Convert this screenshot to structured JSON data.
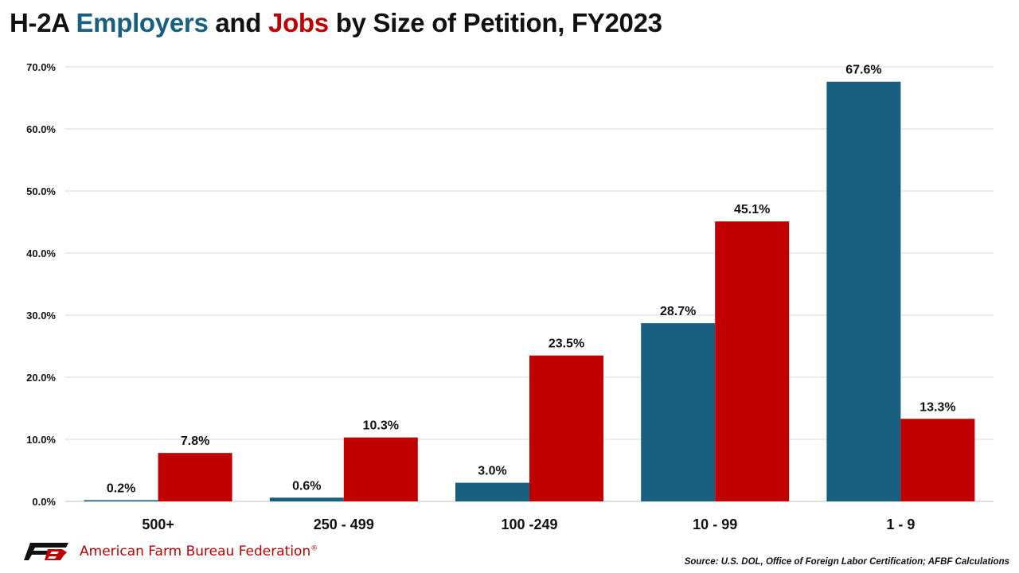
{
  "header": {
    "title_prefix": "H-2A ",
    "title_employers": "Employers",
    "title_and": " and ",
    "title_jobs": "Jobs",
    "title_suffix": " by Size of Petition, FY2023"
  },
  "colors": {
    "employers": "#185f80",
    "jobs": "#c00000",
    "grid": "#d9d9d9"
  },
  "chart_data": {
    "type": "bar",
    "title": "H-2A Employers and Jobs by Size of Petition, FY2023",
    "categories": [
      "500+",
      "250 - 499",
      "100 -249",
      "10 - 99",
      "1 - 9"
    ],
    "series": [
      {
        "name": "Employers",
        "values": [
          0.2,
          0.6,
          3.0,
          28.7,
          67.6
        ]
      },
      {
        "name": "Jobs",
        "values": [
          7.8,
          10.3,
          23.5,
          45.1,
          13.3
        ]
      }
    ],
    "y_ticks": [
      0,
      10,
      20,
      30,
      40,
      50,
      60,
      70
    ],
    "ylim": [
      0,
      70
    ],
    "grid": true,
    "legend": "none"
  },
  "footer": {
    "logo_icon": "fb-logo-icon",
    "org_name": "American Farm Bureau Federation",
    "trademark": "®",
    "source": "Source: U.S. DOL, Office of Foreign Labor Certification; AFBF Calculations"
  }
}
